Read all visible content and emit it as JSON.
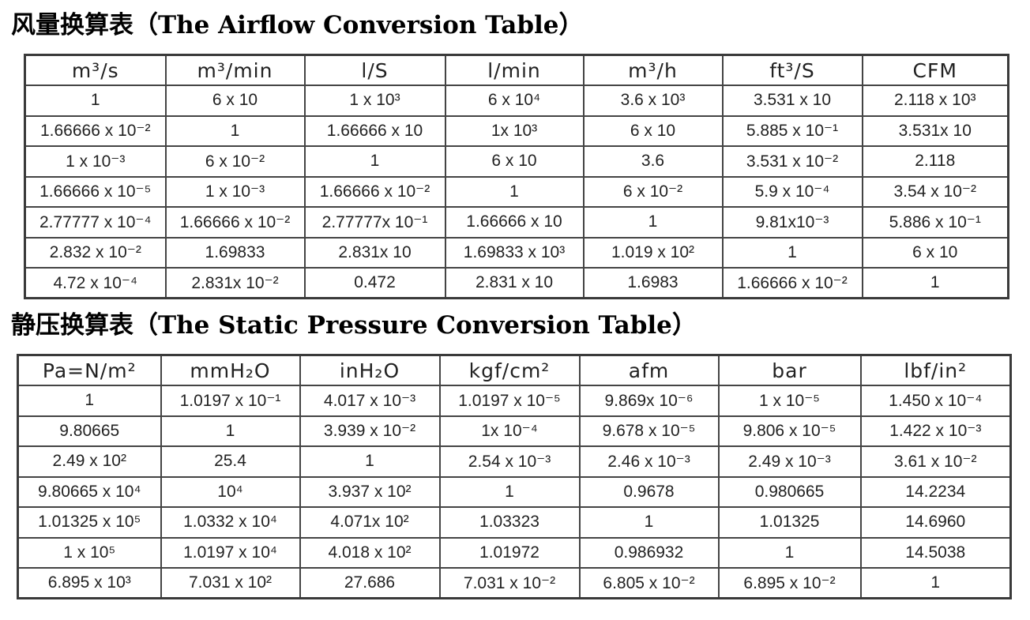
{
  "airflow": {
    "title": "风量换算表（The Airflow Conversion Table）",
    "headers": [
      "m³/s",
      "m³/min",
      "l/S",
      "l/min",
      "m³/h",
      "ft³/S",
      "CFM"
    ],
    "rows": [
      [
        "1",
        "6 x 10",
        "1 x 10³",
        "6 x 10⁴",
        "3.6 x 10³",
        "3.531 x 10",
        "2.118 x 10³"
      ],
      [
        "1.66666 x 10⁻²",
        "1",
        "1.66666 x 10",
        "1x 10³",
        "6 x 10",
        "5.885 x 10⁻¹",
        "3.531x 10"
      ],
      [
        "1 x 10⁻³",
        "6 x 10⁻²",
        "1",
        "6 x 10",
        "3.6",
        "3.531 x 10⁻²",
        "2.118"
      ],
      [
        "1.66666 x 10⁻⁵",
        "1 x 10⁻³",
        "1.66666 x 10⁻²",
        "1",
        "6 x 10⁻²",
        "5.9 x 10⁻⁴",
        "3.54 x 10⁻²"
      ],
      [
        "2.77777 x 10⁻⁴",
        "1.66666 x 10⁻²",
        "2.77777x 10⁻¹",
        "1.66666 x 10",
        "1",
        "9.81x10⁻³",
        "5.886 x 10⁻¹"
      ],
      [
        "2.832 x 10⁻²",
        "1.69833",
        "2.831x 10",
        "1.69833 x 10³",
        "1.019 x 10²",
        "1",
        "6 x 10"
      ],
      [
        "4.72 x 10⁻⁴",
        "2.831x 10⁻²",
        "0.472",
        "2.831 x 10",
        "1.6983",
        "1.66666 x 10⁻²",
        "1"
      ]
    ]
  },
  "pressure": {
    "title": "静压换算表（The Static Pressure Conversion Table）",
    "headers": [
      "Pa=N/m²",
      "mmH₂O",
      "inH₂O",
      "kgf/cm²",
      "afm",
      "bar",
      "lbf/in²"
    ],
    "rows": [
      [
        "1",
        "1.0197 x 10⁻¹",
        "4.017 x 10⁻³",
        "1.0197 x 10⁻⁵",
        "9.869x 10⁻⁶",
        "1 x 10⁻⁵",
        "1.450 x 10⁻⁴"
      ],
      [
        "9.80665",
        "1",
        "3.939 x 10⁻²",
        "1x 10⁻⁴",
        "9.678 x 10⁻⁵",
        "9.806 x 10⁻⁵",
        "1.422 x 10⁻³"
      ],
      [
        "2.49 x 10²",
        "25.4",
        "1",
        "2.54 x 10⁻³",
        "2.46 x 10⁻³",
        "2.49 x 10⁻³",
        "3.61 x 10⁻²"
      ],
      [
        "9.80665 x 10⁴",
        "10⁴",
        "3.937 x 10²",
        "1",
        "0.9678",
        "0.980665",
        "14.2234"
      ],
      [
        "1.01325 x 10⁵",
        "1.0332 x 10⁴",
        "4.071x 10²",
        "1.03323",
        "1",
        "1.01325",
        "14.6960"
      ],
      [
        "1 x 10⁵",
        "1.0197 x 10⁴",
        "4.018 x 10²",
        "1.01972",
        "0.986932",
        "1",
        "14.5038"
      ],
      [
        "6.895 x 10³",
        "7.031 x 10²",
        "27.686",
        "7.031 x 10⁻²",
        "6.805 x 10⁻²",
        "6.895 x 10⁻²",
        "1"
      ]
    ]
  }
}
